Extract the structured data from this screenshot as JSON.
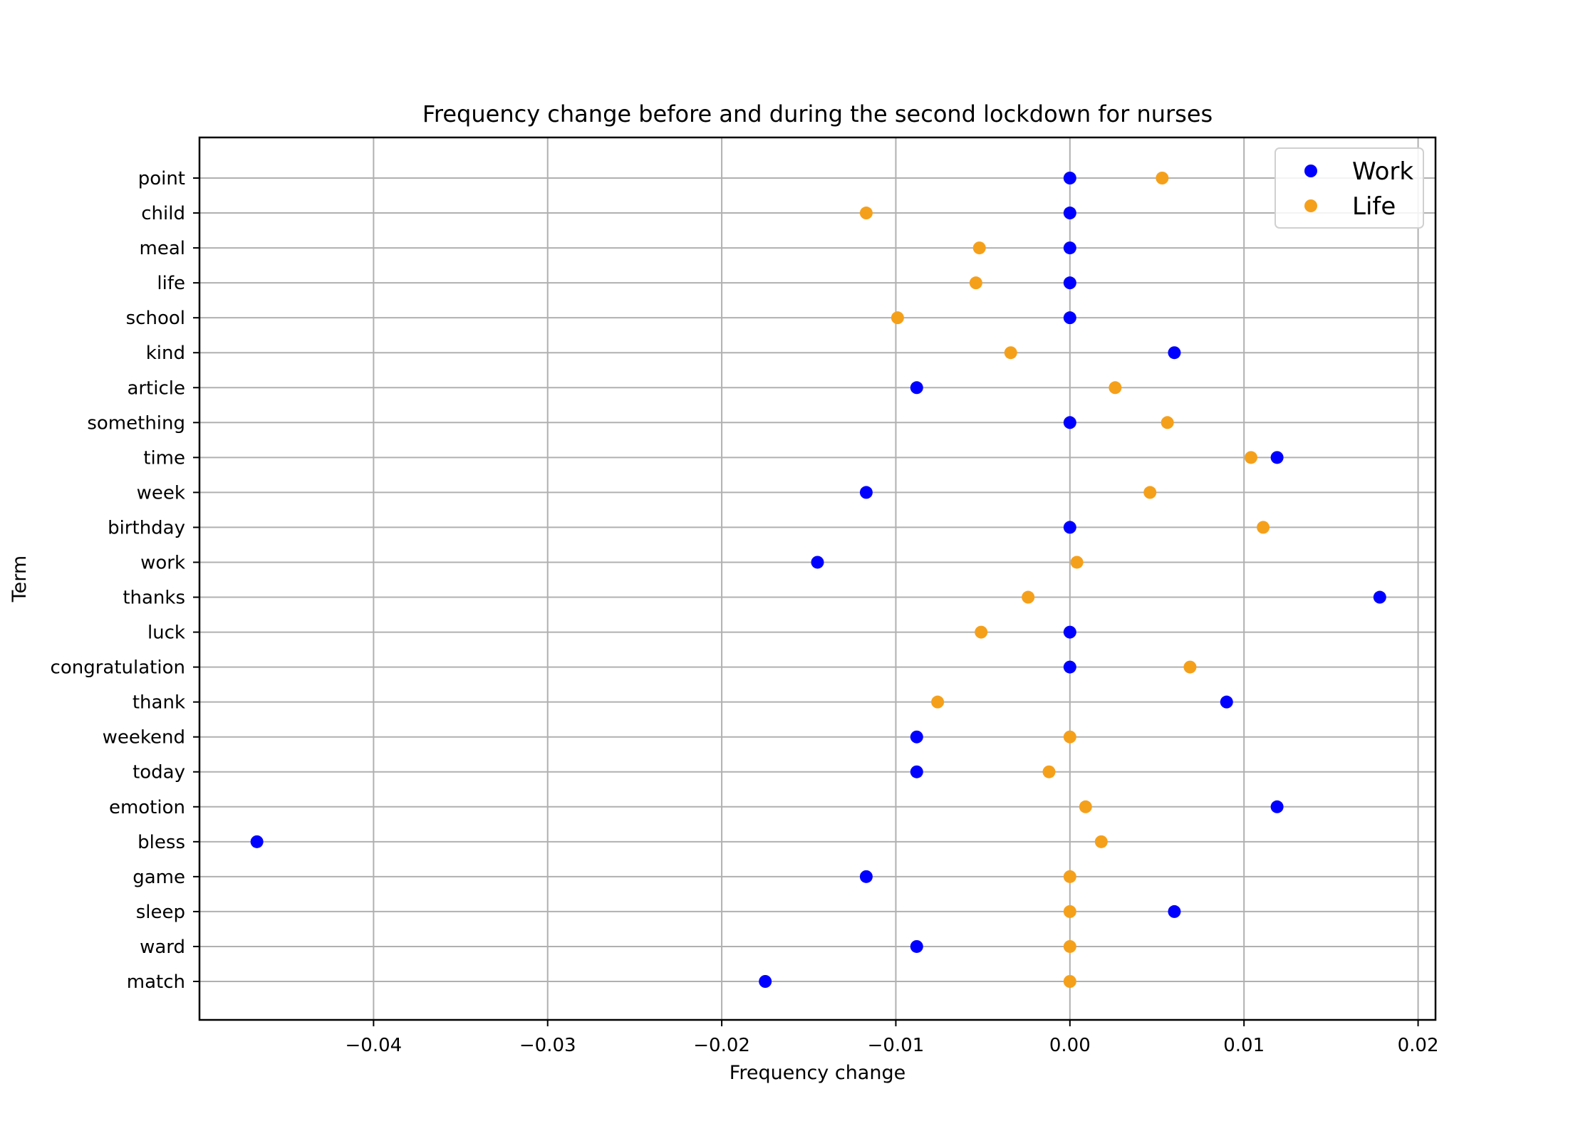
{
  "chart_data": {
    "type": "scatter",
    "title": "Frequency change before and during the second lockdown for nurses",
    "xlabel": "Frequency change",
    "ylabel": "Term",
    "xlim": [
      -0.05,
      0.021
    ],
    "xticks": [
      -0.04,
      -0.03,
      -0.02,
      -0.01,
      0.0,
      0.01,
      0.02
    ],
    "xtick_labels": [
      "−0.04",
      "−0.03",
      "−0.02",
      "−0.01",
      "0.00",
      "0.01",
      "0.02"
    ],
    "grid": true,
    "legend_position": "top-right",
    "categories": [
      "point",
      "child",
      "meal",
      "life",
      "school",
      "kind",
      "article",
      "something",
      "time",
      "week",
      "birthday",
      "work",
      "thanks",
      "luck",
      "congratulation",
      "thank",
      "weekend",
      "today",
      "emotion",
      "bless",
      "game",
      "sleep",
      "ward",
      "match"
    ],
    "series": [
      {
        "name": "Work",
        "color": "#0000ff",
        "values": [
          0.0,
          0.0,
          0.0,
          0.0,
          0.0,
          0.006,
          -0.0088,
          0.0,
          0.0119,
          -0.0117,
          0.0,
          -0.0145,
          0.0178,
          0.0,
          0.0,
          0.009,
          -0.0088,
          -0.0088,
          0.0119,
          -0.0467,
          -0.0117,
          0.006,
          -0.0088,
          -0.0175
        ]
      },
      {
        "name": "Life",
        "color": "#f5a01a",
        "values": [
          0.0053,
          -0.0117,
          -0.0052,
          -0.0054,
          -0.0099,
          -0.0034,
          0.0026,
          0.0056,
          0.0104,
          0.0046,
          0.0111,
          0.0004,
          -0.0024,
          -0.0051,
          0.0069,
          -0.0076,
          0.0,
          -0.0012,
          0.0009,
          0.0018,
          0.0,
          0.0,
          0.0,
          0.0
        ]
      }
    ]
  }
}
